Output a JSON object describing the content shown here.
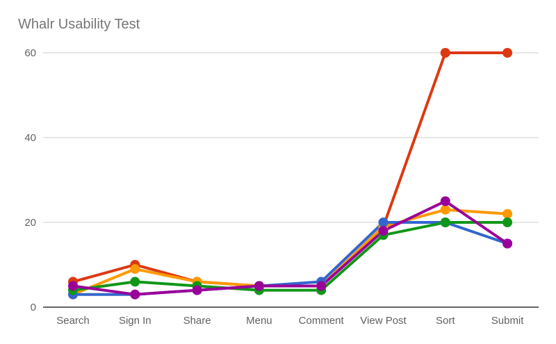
{
  "chart_data": {
    "type": "line",
    "title": "Whalr Usability Test",
    "categories": [
      "Search",
      "Sign In",
      "Share",
      "Menu",
      "Comment",
      "View Post",
      "Sort",
      "Submit"
    ],
    "ylim": [
      0,
      60
    ],
    "yticks": [
      0,
      20,
      40,
      60
    ],
    "grid": true,
    "legend": "none",
    "series": [
      {
        "color": "#dc3912",
        "values": [
          6,
          10,
          6,
          5,
          5,
          19,
          60,
          60
        ]
      },
      {
        "color": "#ff9900",
        "values": [
          3,
          9,
          6,
          5,
          5,
          19,
          23,
          22
        ]
      },
      {
        "color": "#3366cc",
        "values": [
          3,
          3,
          4,
          5,
          6,
          20,
          20,
          15
        ]
      },
      {
        "color": "#109618",
        "values": [
          4,
          6,
          5,
          4,
          4,
          17,
          20,
          20
        ]
      },
      {
        "color": "#990099",
        "values": [
          5,
          3,
          4,
          5,
          5,
          18,
          25,
          15
        ]
      }
    ]
  }
}
